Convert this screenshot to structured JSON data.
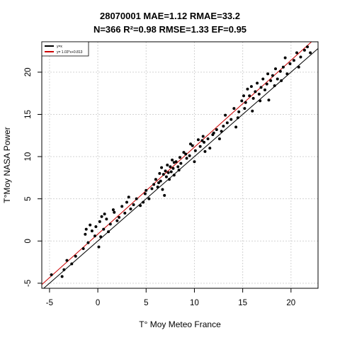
{
  "chart_data": {
    "type": "scatter",
    "title_line1": "28070001 MAE=1.12 RMAE=33.2",
    "title_line2": "N=366 R²=0.98 RMSE=1.33 EF=0.95",
    "xlabel": "T° Moy Meteo France",
    "ylabel": "T°Moy NASA Power",
    "xlim": [
      -5.8,
      22.8
    ],
    "ylim": [
      -5.6,
      23.6
    ],
    "x_ticks": [
      -5,
      0,
      5,
      10,
      15,
      20
    ],
    "y_ticks": [
      -5,
      0,
      5,
      10,
      15,
      20
    ],
    "grid": true,
    "legend_position": "top-left",
    "series": [
      {
        "name": "y=x",
        "type": "line",
        "color": "#000000",
        "slope": 1,
        "intercept": 0
      },
      {
        "name": "y= 1.03*x+0.813",
        "type": "line",
        "color": "#cc0000",
        "slope": 1.03,
        "intercept": 0.813
      }
    ],
    "points": [
      [
        -4.8,
        -4.0
      ],
      [
        -3.5,
        -3.4
      ],
      [
        -3.7,
        -4.2
      ],
      [
        -3.2,
        -2.3
      ],
      [
        -2.7,
        -2.7
      ],
      [
        -2.3,
        -1.8
      ],
      [
        -1.5,
        -0.9
      ],
      [
        -1.3,
        0.8
      ],
      [
        -1.2,
        1.4
      ],
      [
        -0.8,
        1.9
      ],
      [
        -0.6,
        1.2
      ],
      [
        -0.3,
        0.6
      ],
      [
        0.1,
        -0.7
      ],
      [
        0.3,
        0.5
      ],
      [
        0.2,
        2.3
      ],
      [
        0.6,
        1.4
      ],
      [
        0.7,
        3.2
      ],
      [
        0.9,
        2.6
      ],
      [
        1.1,
        1.1
      ],
      [
        1.3,
        2.0
      ],
      [
        1.7,
        3.4
      ],
      [
        2.2,
        2.8
      ],
      [
        2.5,
        4.1
      ],
      [
        2.8,
        3.3
      ],
      [
        3.0,
        4.6
      ],
      [
        3.4,
        3.8
      ],
      [
        3.7,
        4.3
      ],
      [
        4.0,
        5.0
      ],
      [
        4.4,
        4.2
      ],
      [
        4.9,
        5.6
      ],
      [
        5.3,
        5.0
      ],
      [
        5.6,
        6.2
      ],
      [
        6.0,
        7.3
      ],
      [
        6.2,
        6.4
      ],
      [
        6.4,
        8.0
      ],
      [
        6.5,
        7.1
      ],
      [
        6.6,
        8.7
      ],
      [
        6.7,
        6.1
      ],
      [
        6.8,
        7.9
      ],
      [
        6.9,
        5.4
      ],
      [
        7.0,
        8.3
      ],
      [
        7.1,
        7.6
      ],
      [
        7.2,
        9.0
      ],
      [
        7.3,
        8.1
      ],
      [
        7.4,
        7.3
      ],
      [
        7.5,
        8.8
      ],
      [
        7.6,
        8.2
      ],
      [
        7.7,
        9.6
      ],
      [
        7.8,
        8.6
      ],
      [
        7.9,
        7.8
      ],
      [
        8.1,
        9.4
      ],
      [
        8.3,
        8.8
      ],
      [
        8.5,
        9.9
      ],
      [
        8.6,
        9.2
      ],
      [
        8.9,
        10.5
      ],
      [
        9.2,
        9.8
      ],
      [
        9.5,
        10.1
      ],
      [
        9.8,
        11.3
      ],
      [
        10.1,
        10.7
      ],
      [
        10.4,
        12.0
      ],
      [
        10.6,
        11.2
      ],
      [
        10.8,
        11.9
      ],
      [
        11.1,
        10.6
      ],
      [
        11.4,
        12.1
      ],
      [
        11.6,
        11.0
      ],
      [
        11.9,
        12.6
      ],
      [
        12.3,
        13.2
      ],
      [
        12.6,
        12.1
      ],
      [
        13.0,
        13.6
      ],
      [
        13.4,
        14.0
      ],
      [
        13.8,
        14.4
      ],
      [
        14.3,
        13.5
      ],
      [
        14.6,
        15.3
      ],
      [
        14.9,
        16.6
      ],
      [
        15.1,
        17.2
      ],
      [
        15.3,
        16.4
      ],
      [
        15.5,
        18.0
      ],
      [
        15.7,
        17.2
      ],
      [
        15.9,
        18.3
      ],
      [
        16.1,
        16.9
      ],
      [
        16.3,
        17.7
      ],
      [
        16.5,
        18.7
      ],
      [
        16.7,
        17.4
      ],
      [
        16.9,
        18.2
      ],
      [
        17.1,
        19.2
      ],
      [
        17.3,
        17.9
      ],
      [
        17.5,
        18.6
      ],
      [
        17.7,
        16.7
      ],
      [
        17.9,
        19.0
      ],
      [
        18.1,
        19.6
      ],
      [
        18.3,
        18.4
      ],
      [
        18.6,
        19.2
      ],
      [
        18.9,
        20.1
      ],
      [
        19.2,
        20.6
      ],
      [
        19.6,
        19.8
      ],
      [
        19.9,
        21.0
      ],
      [
        20.3,
        21.4
      ],
      [
        20.6,
        22.3
      ],
      [
        21.0,
        21.8
      ],
      [
        21.4,
        22.6
      ],
      [
        21.7,
        23.0
      ],
      [
        22.0,
        22.3
      ],
      [
        -1.0,
        -0.2
      ],
      [
        0.4,
        2.9
      ],
      [
        1.6,
        3.7
      ],
      [
        3.2,
        5.2
      ],
      [
        4.7,
        4.6
      ],
      [
        5.8,
        6.7
      ],
      [
        6.3,
        6.9
      ],
      [
        7.9,
        9.3
      ],
      [
        9.1,
        10.3
      ],
      [
        10.0,
        9.4
      ],
      [
        11.0,
        11.7
      ],
      [
        12.0,
        12.8
      ],
      [
        13.2,
        14.9
      ],
      [
        14.1,
        15.7
      ],
      [
        15.2,
        15.7
      ],
      [
        16.0,
        15.4
      ],
      [
        17.6,
        19.8
      ],
      [
        18.4,
        20.4
      ],
      [
        19.4,
        21.7
      ],
      [
        20.8,
        20.6
      ],
      [
        2.0,
        2.4
      ],
      [
        -0.2,
        1.7
      ],
      [
        5.0,
        6.0
      ],
      [
        8.4,
        8.4
      ],
      [
        9.6,
        11.5
      ],
      [
        10.9,
        12.4
      ],
      [
        12.8,
        13.0
      ],
      [
        14.5,
        14.6
      ],
      [
        16.8,
        16.6
      ],
      [
        19.0,
        19.0
      ]
    ]
  }
}
